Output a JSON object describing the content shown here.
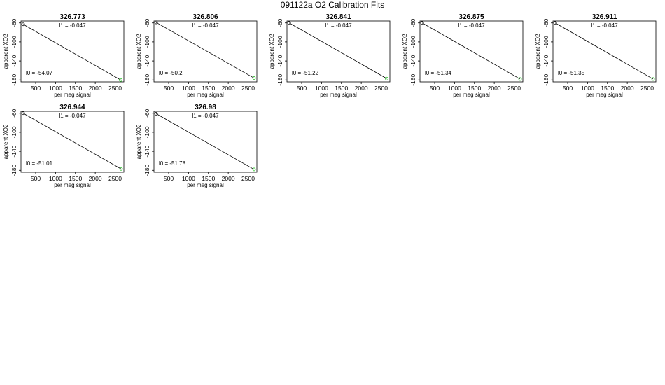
{
  "title": "091122a   O2 Calibration Fits",
  "chart_data": [
    {
      "type": "scatter",
      "title": "326.773",
      "xlabel": "per meg signal",
      "ylabel": "apparent XO2",
      "xlim": [
        130,
        2720
      ],
      "ylim": [
        -184,
        -56
      ],
      "xticks": [
        500,
        1000,
        1500,
        2000,
        2500
      ],
      "yticks": [
        -60,
        -100,
        -140,
        -180
      ],
      "points": [
        {
          "x": 185,
          "y": -63
        },
        {
          "x": 2640,
          "y": -180
        }
      ],
      "fit_line": {
        "x": [
          185,
          2640
        ],
        "y": [
          -63,
          -180
        ]
      },
      "annotations": [
        "l1 =  -0.047",
        "l0 =  -54.07"
      ]
    },
    {
      "type": "scatter",
      "title": "326.806",
      "xlabel": "per meg signal",
      "ylabel": "apparent XO2",
      "xlim": [
        130,
        2720
      ],
      "ylim": [
        -184,
        -56
      ],
      "xticks": [
        500,
        1000,
        1500,
        2000,
        2500
      ],
      "yticks": [
        -60,
        -100,
        -140,
        -180
      ],
      "points": [
        {
          "x": 185,
          "y": -59
        },
        {
          "x": 2650,
          "y": -176
        }
      ],
      "fit_line": {
        "x": [
          185,
          2650
        ],
        "y": [
          -59,
          -176
        ]
      },
      "annotations": [
        "l1 =  -0.047",
        "l0 =  -50.2"
      ]
    },
    {
      "type": "scatter",
      "title": "326.841",
      "xlabel": "per meg signal",
      "ylabel": "apparent XO2",
      "xlim": [
        130,
        2720
      ],
      "ylim": [
        -184,
        -56
      ],
      "xticks": [
        500,
        1000,
        1500,
        2000,
        2500
      ],
      "yticks": [
        -60,
        -100,
        -140,
        -180
      ],
      "points": [
        {
          "x": 185,
          "y": -60
        },
        {
          "x": 2640,
          "y": -177
        }
      ],
      "fit_line": {
        "x": [
          185,
          2640
        ],
        "y": [
          -60,
          -177
        ]
      },
      "annotations": [
        "l1 =  -0.047",
        "l0 =  -51.22"
      ]
    },
    {
      "type": "scatter",
      "title": "326.875",
      "xlabel": "per meg signal",
      "ylabel": "apparent XO2",
      "xlim": [
        130,
        2720
      ],
      "ylim": [
        -184,
        -56
      ],
      "xticks": [
        500,
        1000,
        1500,
        2000,
        2500
      ],
      "yticks": [
        -60,
        -100,
        -140,
        -180
      ],
      "points": [
        {
          "x": 185,
          "y": -60
        },
        {
          "x": 2650,
          "y": -178
        }
      ],
      "fit_line": {
        "x": [
          185,
          2650
        ],
        "y": [
          -60,
          -178
        ]
      },
      "annotations": [
        "l1 =  -0.047",
        "l0 =  -51.34"
      ]
    },
    {
      "type": "scatter",
      "title": "326.911",
      "xlabel": "per meg signal",
      "ylabel": "apparent XO2",
      "xlim": [
        130,
        2720
      ],
      "ylim": [
        -184,
        -56
      ],
      "xticks": [
        500,
        1000,
        1500,
        2000,
        2500
      ],
      "yticks": [
        -60,
        -100,
        -140,
        -180
      ],
      "points": [
        {
          "x": 185,
          "y": -60
        },
        {
          "x": 2650,
          "y": -178
        }
      ],
      "fit_line": {
        "x": [
          185,
          2650
        ],
        "y": [
          -60,
          -178
        ]
      },
      "annotations": [
        "l1 =  -0.047",
        "l0 =  -51.35"
      ]
    },
    {
      "type": "scatter",
      "title": "326.944",
      "xlabel": "per meg signal",
      "ylabel": "apparent XO2",
      "xlim": [
        130,
        2720
      ],
      "ylim": [
        -184,
        -56
      ],
      "xticks": [
        500,
        1000,
        1500,
        2000,
        2500
      ],
      "yticks": [
        -60,
        -100,
        -140,
        -180
      ],
      "points": [
        {
          "x": 185,
          "y": -60
        },
        {
          "x": 2650,
          "y": -177
        }
      ],
      "fit_line": {
        "x": [
          185,
          2650
        ],
        "y": [
          -60,
          -177
        ]
      },
      "annotations": [
        "l1 =  -0.047",
        "l0 =  -51.01"
      ]
    },
    {
      "type": "scatter",
      "title": "326.98",
      "xlabel": "per meg signal",
      "ylabel": "apparent XO2",
      "xlim": [
        130,
        2720
      ],
      "ylim": [
        -184,
        -56
      ],
      "xticks": [
        500,
        1000,
        1500,
        2000,
        2500
      ],
      "yticks": [
        -60,
        -100,
        -140,
        -180
      ],
      "points": [
        {
          "x": 185,
          "y": -61
        },
        {
          "x": 2650,
          "y": -178
        }
      ],
      "fit_line": {
        "x": [
          185,
          2650
        ],
        "y": [
          -61,
          -178
        ]
      },
      "annotations": [
        "l1 =  -0.047",
        "l0 =  -51.78"
      ]
    }
  ],
  "colors": {
    "point_low": "#000000",
    "point_high": "#22c322",
    "line": "#000000"
  }
}
